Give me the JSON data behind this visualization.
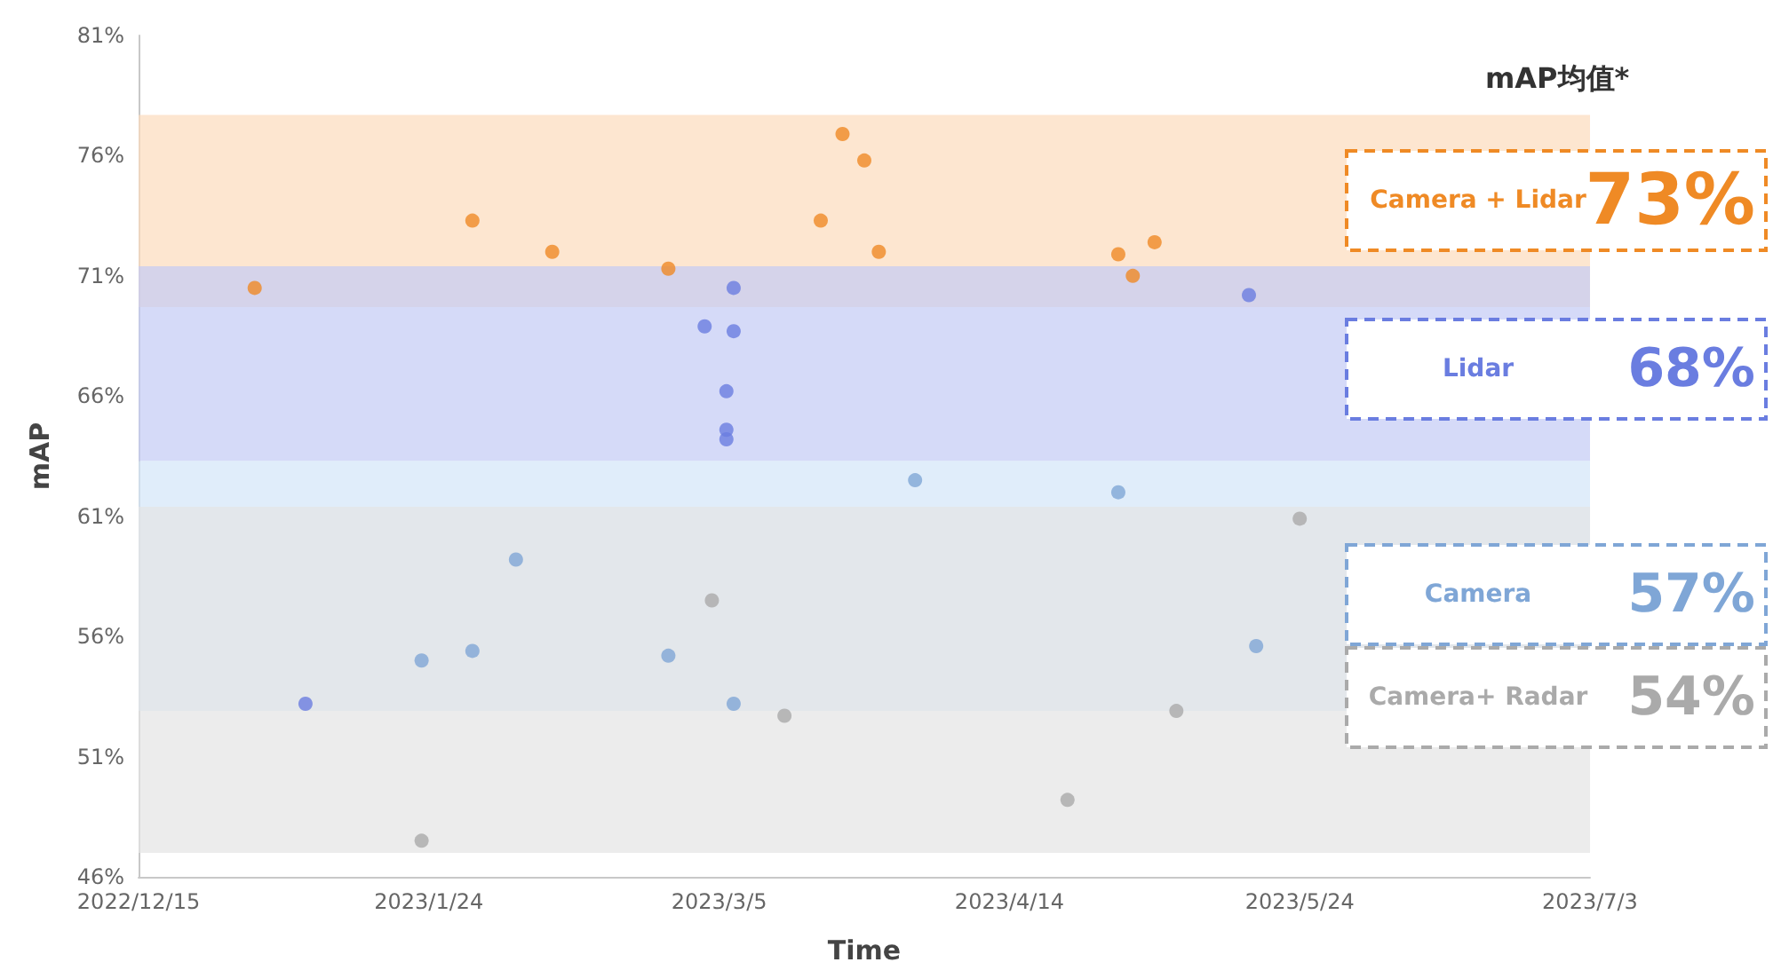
{
  "chart_data": {
    "type": "scatter",
    "xlabel": "Time",
    "ylabel": "mAP",
    "legend_title": "mAP均值*",
    "legend": "right",
    "marker": "circle",
    "xlim": [
      "2022-12-15",
      "2023-07-03"
    ],
    "xticks": [
      {
        "value": "2022-12-15",
        "label": "2022/12/15"
      },
      {
        "value": "2023-01-24",
        "label": "2023/1/24"
      },
      {
        "value": "2023-03-05",
        "label": "2023/3/5"
      },
      {
        "value": "2023-04-14",
        "label": "2023/4/14"
      },
      {
        "value": "2023-05-24",
        "label": "2023/5/24"
      },
      {
        "value": "2023-07-03",
        "label": "2023/7/3"
      }
    ],
    "ylim": [
      46,
      81
    ],
    "yticks": [
      {
        "value": 46,
        "label": "46%"
      },
      {
        "value": 51,
        "label": "51%"
      },
      {
        "value": 56,
        "label": "56%"
      },
      {
        "value": 61,
        "label": "61%"
      },
      {
        "value": 66,
        "label": "66%"
      },
      {
        "value": 71,
        "label": "71%"
      },
      {
        "value": 76,
        "label": "76%"
      },
      {
        "value": 81,
        "label": "81%"
      }
    ],
    "series": [
      {
        "name": "Camera + Lidar",
        "color": "#ef8a25",
        "x": [
          "2022-12-31",
          "2023-01-30",
          "2023-02-10",
          "2023-02-26",
          "2023-03-19",
          "2023-03-22",
          "2023-03-25",
          "2023-03-27",
          "2023-04-29",
          "2023-05-01",
          "2023-05-04"
        ],
        "values": [
          70.5,
          73.3,
          72.0,
          71.3,
          73.3,
          76.9,
          75.8,
          72.0,
          71.9,
          71.0,
          72.4
        ]
      },
      {
        "name": "Lidar",
        "color": "#6a7de0",
        "x": [
          "2023-01-07",
          "2023-03-03",
          "2023-03-07",
          "2023-03-07",
          "2023-03-06",
          "2023-03-06",
          "2023-03-06",
          "2023-05-17"
        ],
        "values": [
          53.2,
          68.9,
          70.5,
          68.7,
          66.2,
          64.6,
          64.2,
          70.2
        ]
      },
      {
        "name": "Camera",
        "color": "#7fa6d6",
        "x": [
          "2023-01-23",
          "2023-01-30",
          "2023-02-05",
          "2023-02-26",
          "2023-03-07",
          "2023-04-01",
          "2023-04-29",
          "2023-05-18"
        ],
        "values": [
          55.0,
          55.4,
          59.2,
          55.2,
          53.2,
          62.5,
          62.0,
          55.6
        ]
      },
      {
        "name": "Camera+ Radar",
        "color": "#aaaaaa",
        "x": [
          "2023-01-23",
          "2023-03-04",
          "2023-03-14",
          "2023-04-22",
          "2023-05-07",
          "2023-05-24"
        ],
        "values": [
          47.5,
          57.5,
          52.7,
          49.2,
          52.9,
          60.9
        ]
      }
    ],
    "bands": [
      {
        "axis": "y",
        "from": 69.7,
        "to": 77.7,
        "color": "#fcdcbc"
      },
      {
        "axis": "y",
        "from": 63.3,
        "to": 71.4,
        "color": "#c3cbf5"
      },
      {
        "axis": "y",
        "from": 52.9,
        "to": 63.3,
        "color": "#d3e5f8"
      },
      {
        "axis": "y",
        "from": 47.0,
        "to": 61.4,
        "color": "#e4e4e4"
      }
    ],
    "annotations": [
      "73%",
      "68%",
      "57%",
      "54%"
    ]
  }
}
